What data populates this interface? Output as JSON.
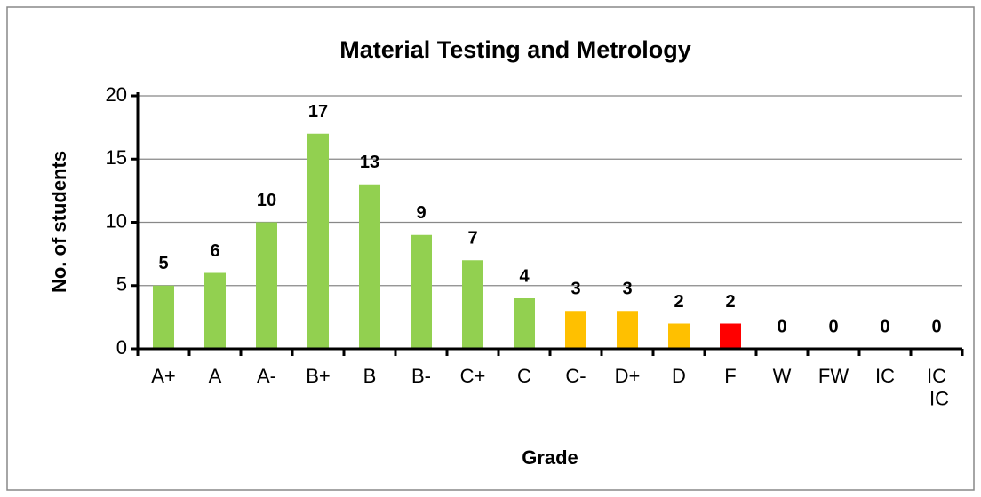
{
  "chart_data": {
    "type": "bar",
    "title": "Material Testing and Metrology",
    "x_label": "Grade",
    "y_label": "No. of students",
    "categories": [
      "A+",
      "A",
      "A-",
      "B+",
      "B",
      "B-",
      "C+",
      "C",
      "C-",
      "D+",
      "D",
      "F",
      "W",
      "FW",
      "IC",
      "IC\nIC"
    ],
    "values": [
      5,
      6,
      10,
      17,
      13,
      9,
      7,
      4,
      3,
      3,
      2,
      2,
      0,
      0,
      0,
      0
    ],
    "colors": [
      "#92d050",
      "#92d050",
      "#92d050",
      "#92d050",
      "#92d050",
      "#92d050",
      "#92d050",
      "#92d050",
      "#ffc000",
      "#ffc000",
      "#ffc000",
      "#ff0000",
      "#92d050",
      "#92d050",
      "#92d050",
      "#92d050"
    ],
    "ylim": [
      0,
      20
    ],
    "yticks": [
      0,
      5,
      10,
      15,
      20
    ],
    "grid": true
  }
}
